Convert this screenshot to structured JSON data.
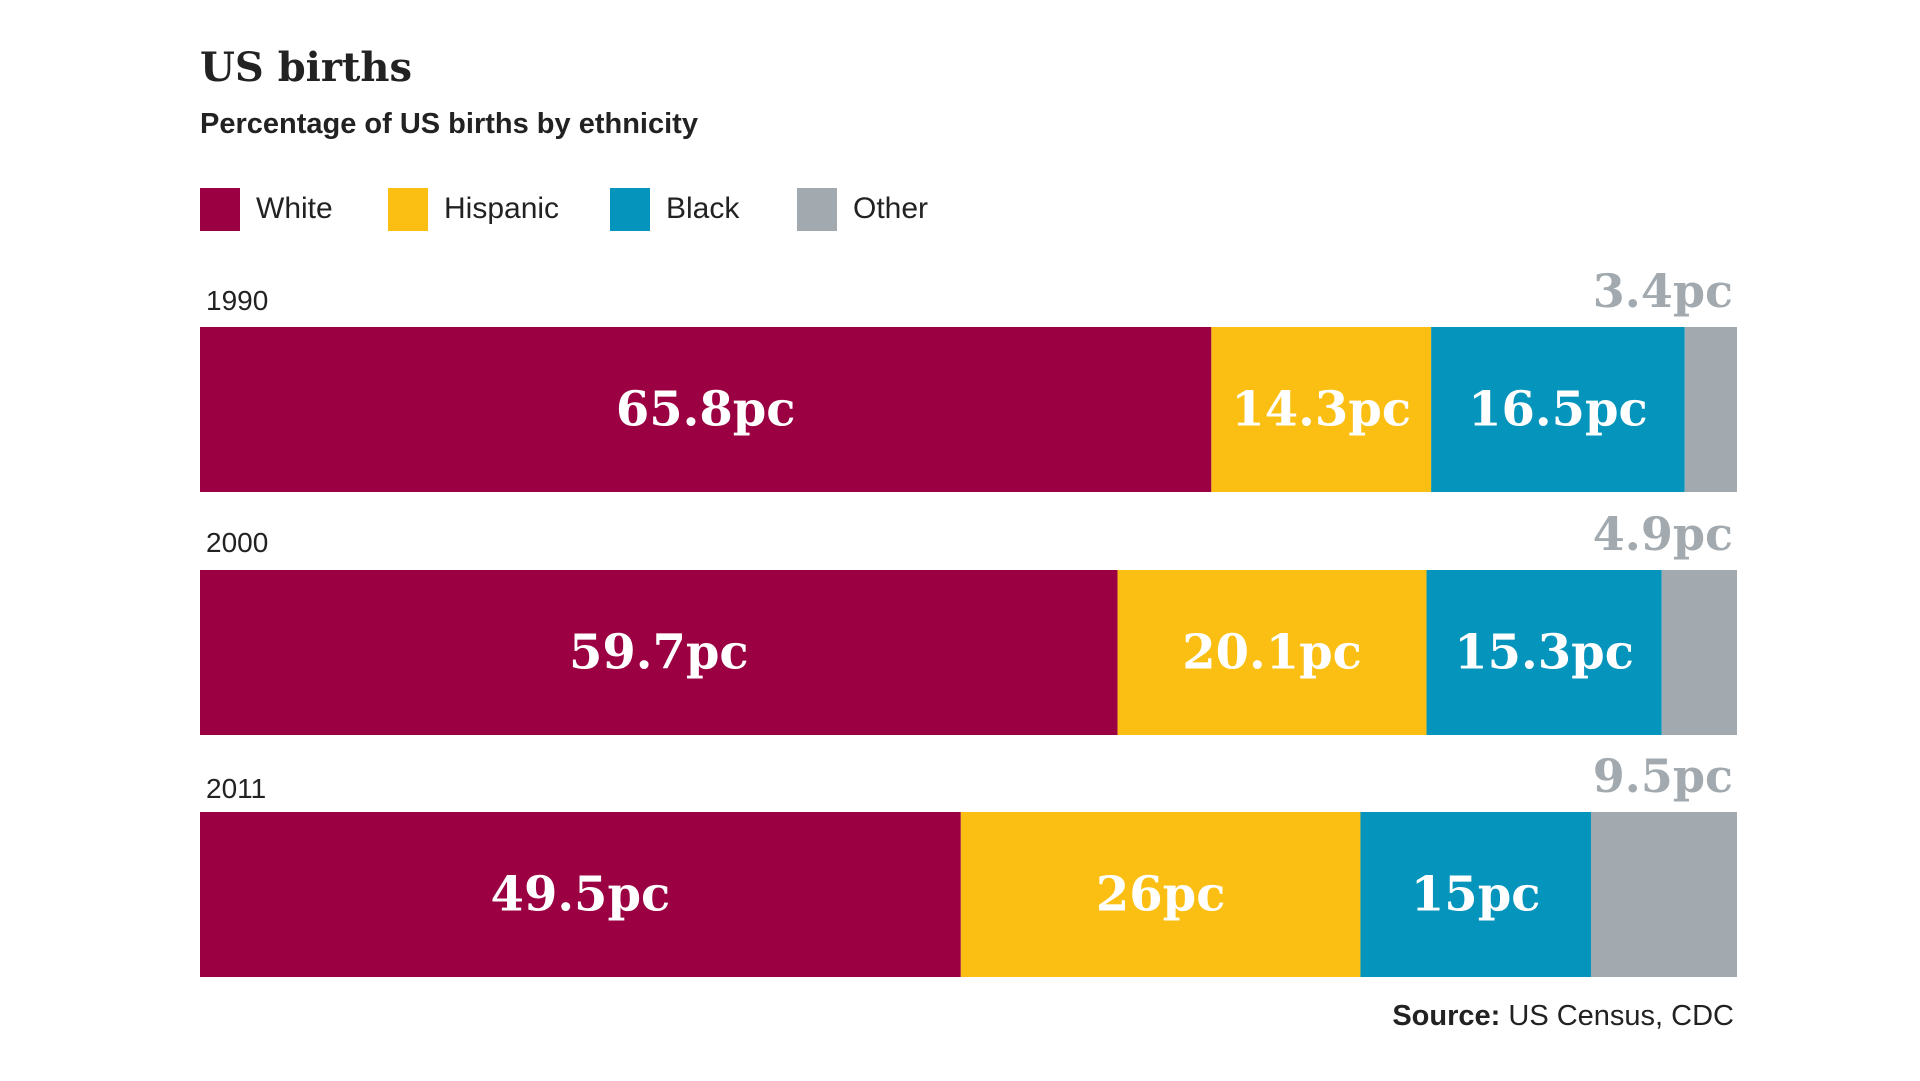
{
  "title": "US births",
  "subtitle": "Percentage of US births by ethnicity",
  "source": {
    "label": "Source:",
    "text": "US Census, CDC"
  },
  "chart_data": {
    "type": "bar",
    "orientation": "horizontal",
    "stacked": true,
    "categories": [
      "1990",
      "2000",
      "2011"
    ],
    "series": [
      {
        "name": "White",
        "color": "#9b0042",
        "values": [
          65.8,
          59.7,
          49.5
        ],
        "labels": [
          "65.8pc",
          "59.7pc",
          "49.5pc"
        ]
      },
      {
        "name": "Hispanic",
        "color": "#fbbf13",
        "values": [
          14.3,
          20.1,
          26
        ],
        "labels": [
          "14.3pc",
          "20.1pc",
          "26pc"
        ]
      },
      {
        "name": "Black",
        "color": "#0494bc",
        "values": [
          16.5,
          15.3,
          15
        ],
        "labels": [
          "16.5pc",
          "15.3pc",
          "15pc"
        ]
      },
      {
        "name": "Other",
        "color": "#a2aaaf",
        "values": [
          3.4,
          4.9,
          9.5
        ],
        "labels": [
          "3.4pc",
          "4.9pc",
          "9.5pc"
        ]
      }
    ],
    "xlim": [
      0,
      100
    ],
    "legend": "top-left",
    "grid": false
  }
}
